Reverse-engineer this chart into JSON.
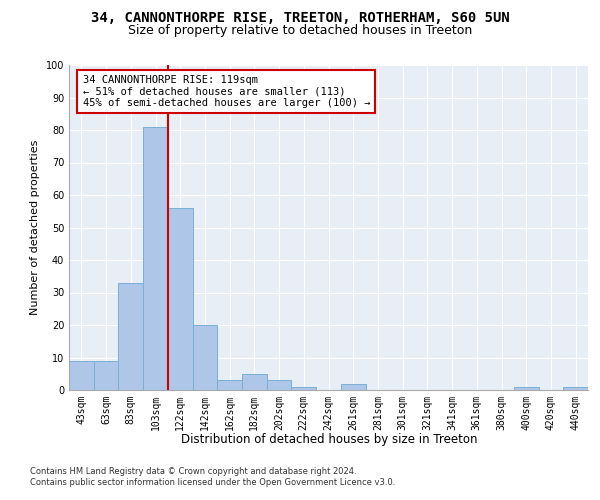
{
  "title1": "34, CANNONTHORPE RISE, TREETON, ROTHERHAM, S60 5UN",
  "title2": "Size of property relative to detached houses in Treeton",
  "xlabel": "Distribution of detached houses by size in Treeton",
  "ylabel": "Number of detached properties",
  "categories": [
    "43sqm",
    "63sqm",
    "83sqm",
    "103sqm",
    "122sqm",
    "142sqm",
    "162sqm",
    "182sqm",
    "202sqm",
    "222sqm",
    "242sqm",
    "261sqm",
    "281sqm",
    "301sqm",
    "321sqm",
    "341sqm",
    "361sqm",
    "380sqm",
    "400sqm",
    "420sqm",
    "440sqm"
  ],
  "values": [
    9,
    9,
    33,
    81,
    56,
    20,
    3,
    5,
    3,
    1,
    0,
    2,
    0,
    0,
    0,
    0,
    0,
    0,
    1,
    0,
    1
  ],
  "bar_color": "#aec6e8",
  "bar_edge_color": "#7aafd4",
  "marker_line_index": 3,
  "marker_label": "34 CANNONTHORPE RISE: 119sqm\n← 51% of detached houses are smaller (113)\n45% of semi-detached houses are larger (100) →",
  "annotation_box_color": "#ffffff",
  "annotation_box_edge_color": "#cc0000",
  "marker_line_color": "#cc0000",
  "bg_color": "#e8eef5",
  "grid_color": "#ffffff",
  "footnote": "Contains HM Land Registry data © Crown copyright and database right 2024.\nContains public sector information licensed under the Open Government Licence v3.0.",
  "ylim": [
    0,
    100
  ],
  "title1_fontsize": 10,
  "title2_fontsize": 9,
  "xlabel_fontsize": 8.5,
  "ylabel_fontsize": 8,
  "tick_fontsize": 7,
  "footnote_fontsize": 6,
  "annotation_fontsize": 7.5
}
